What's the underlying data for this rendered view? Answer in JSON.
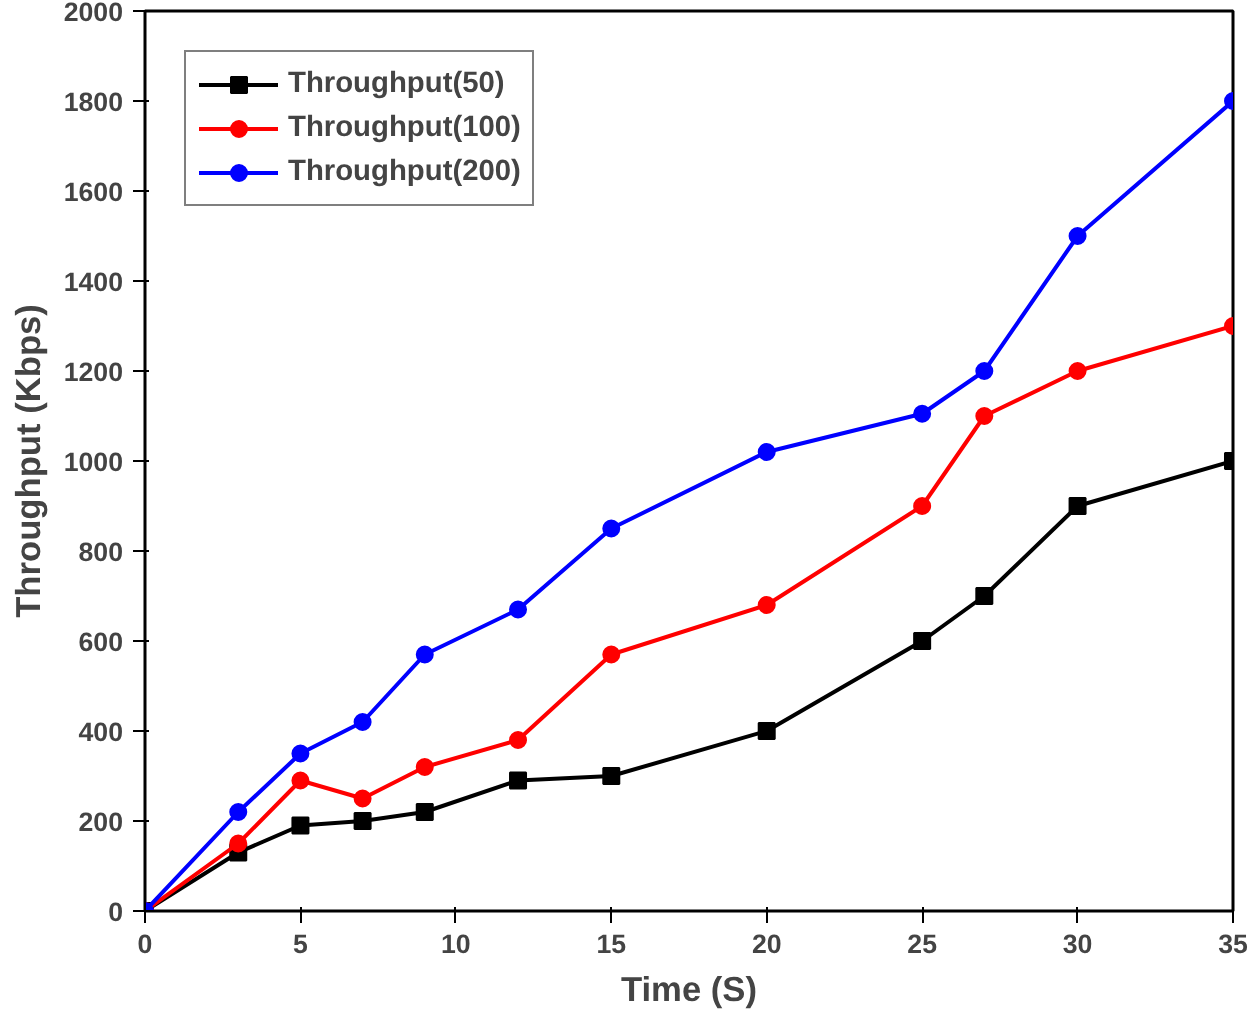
{
  "chart_data": {
    "type": "line",
    "xlabel": "Time (S)",
    "ylabel": "Throughput (Kbps)",
    "x": [
      0,
      3,
      5,
      7,
      9,
      12,
      15,
      20,
      25,
      27,
      30,
      35
    ],
    "series": [
      {
        "name": "Throughput(50)",
        "color": "#000000",
        "marker": "square",
        "values": [
          0,
          130,
          190,
          200,
          220,
          290,
          300,
          400,
          600,
          700,
          900,
          1000
        ]
      },
      {
        "name": "Throughput(100)",
        "color": "#ff0000",
        "marker": "circle",
        "values": [
          0,
          150,
          290,
          250,
          320,
          380,
          570,
          680,
          900,
          1100,
          1200,
          1300
        ]
      },
      {
        "name": "Throughput(200)",
        "color": "#0000ff",
        "marker": "circle",
        "values": [
          0,
          220,
          350,
          420,
          570,
          670,
          850,
          1020,
          1105,
          1200,
          1500,
          1800
        ]
      }
    ],
    "xlim": [
      0,
      35
    ],
    "xticks": [
      0,
      5,
      10,
      15,
      20,
      25,
      30,
      35
    ],
    "ylim": [
      0,
      2000
    ],
    "yticks": [
      0,
      200,
      400,
      600,
      800,
      1000,
      1200,
      1400,
      1600,
      1800,
      2000
    ],
    "grid": false,
    "legend": "top left",
    "line_style": "solid"
  }
}
